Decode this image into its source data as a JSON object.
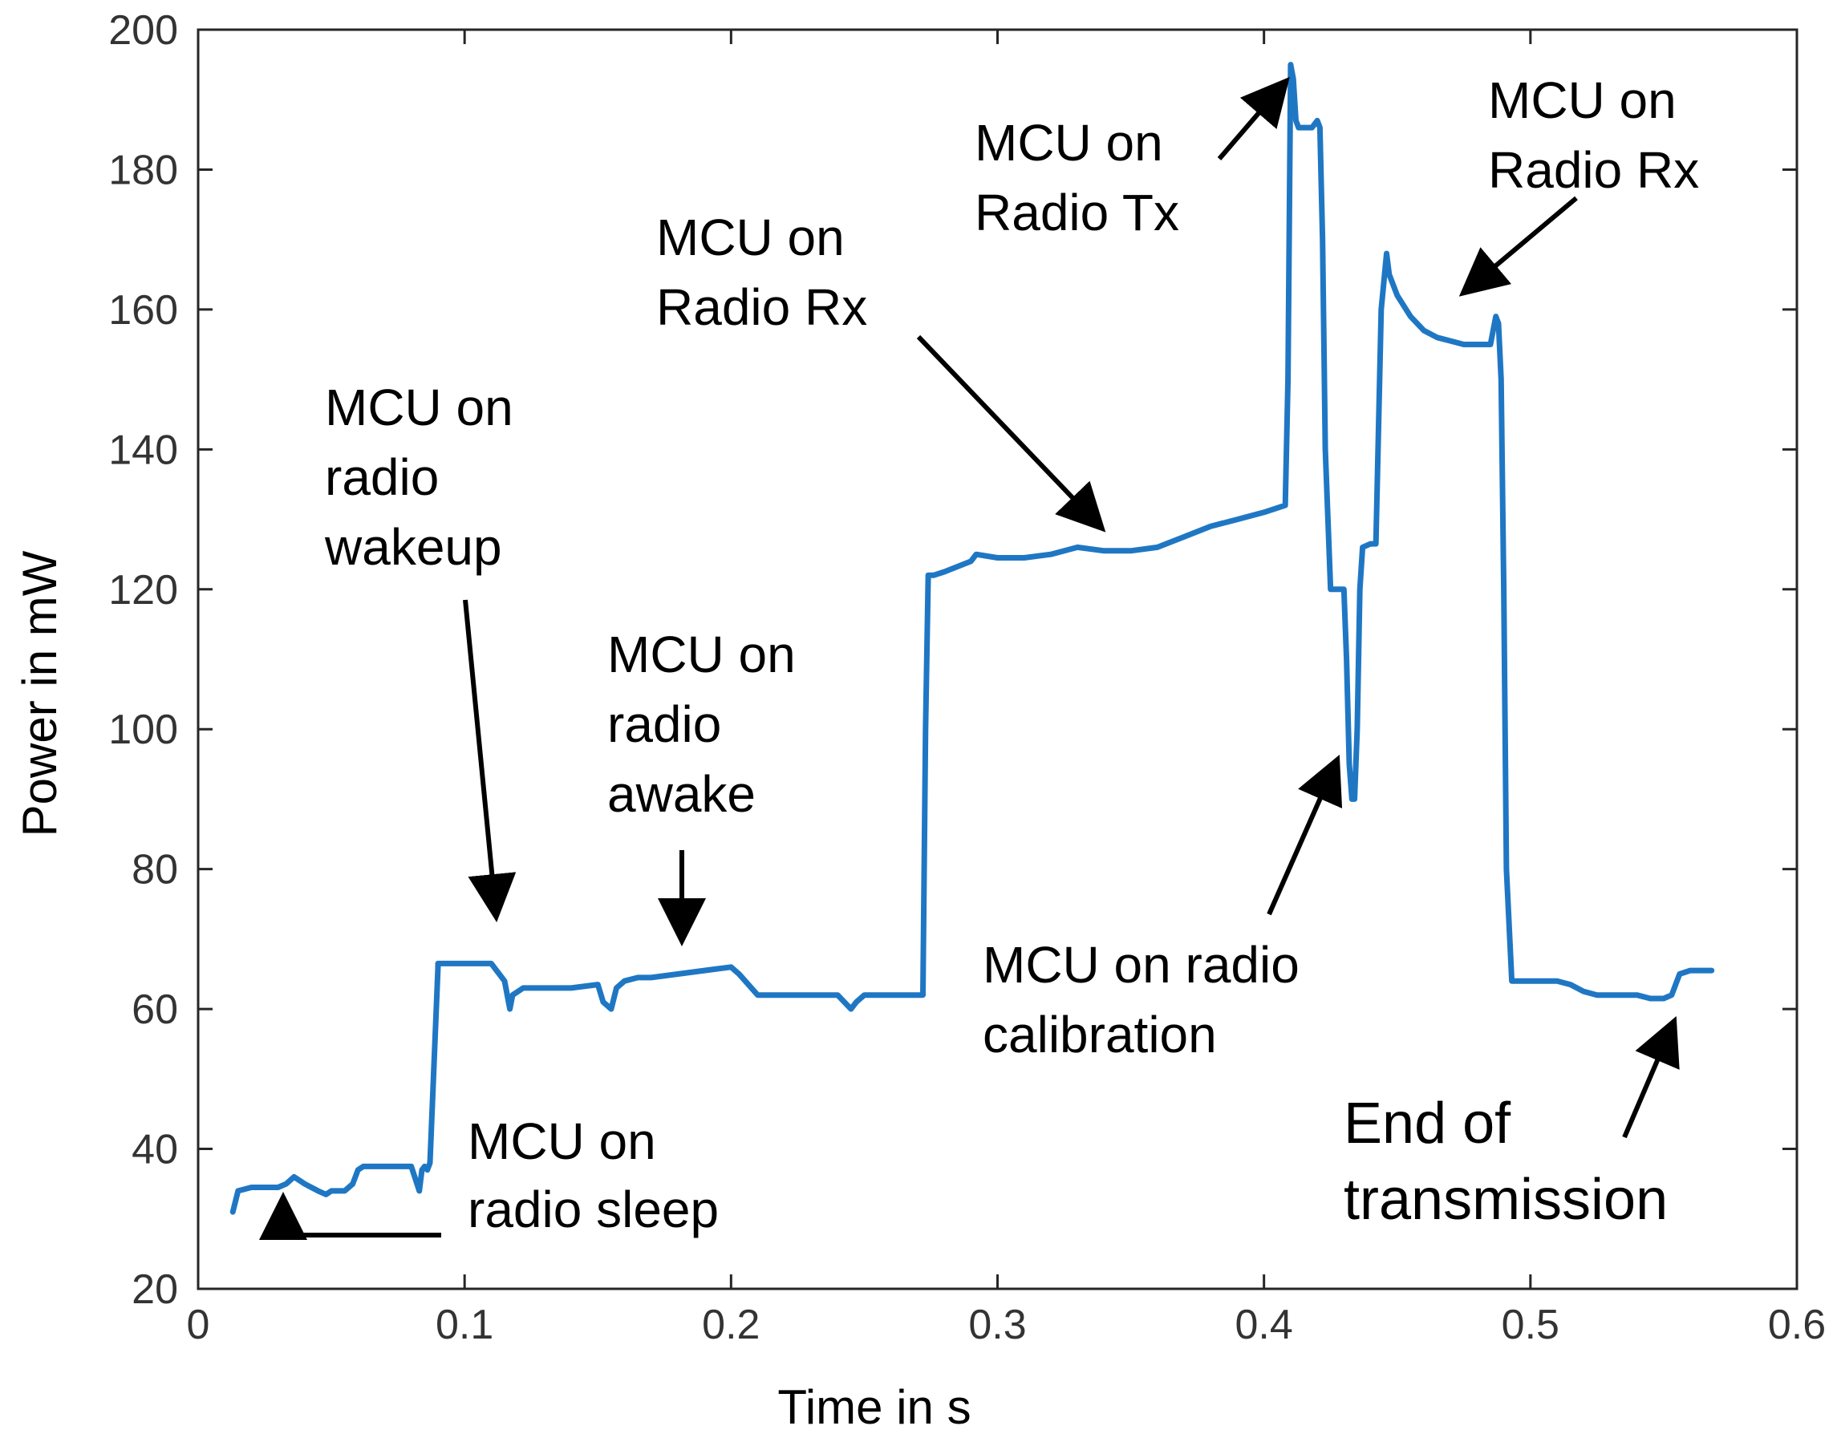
{
  "chart_data": {
    "type": "line",
    "title": "",
    "xlabel": "Time in s",
    "ylabel": "Power in mW",
    "xlim": [
      0,
      0.6
    ],
    "ylim": [
      20,
      200
    ],
    "grid": false,
    "xticks": [
      "0",
      "0.1",
      "0.2",
      "0.3",
      "0.4",
      "0.5",
      "0.6"
    ],
    "yticks": [
      "20",
      "40",
      "60",
      "80",
      "100",
      "120",
      "140",
      "160",
      "180",
      "200"
    ],
    "series": [
      {
        "name": "Power",
        "color": "#1f77c4",
        "x": [
          0.013,
          0.015,
          0.02,
          0.03,
          0.033,
          0.036,
          0.04,
          0.045,
          0.048,
          0.05,
          0.055,
          0.058,
          0.06,
          0.062,
          0.07,
          0.08,
          0.083,
          0.084,
          0.085,
          0.086,
          0.087,
          0.09,
          0.09,
          0.1,
          0.11,
          0.115,
          0.117,
          0.118,
          0.12,
          0.122,
          0.13,
          0.14,
          0.15,
          0.152,
          0.155,
          0.157,
          0.16,
          0.165,
          0.17,
          0.18,
          0.19,
          0.2,
          0.203,
          0.21,
          0.22,
          0.23,
          0.24,
          0.245,
          0.247,
          0.25,
          0.26,
          0.27,
          0.272,
          0.273,
          0.274,
          0.276,
          0.28,
          0.29,
          0.292,
          0.3,
          0.31,
          0.32,
          0.33,
          0.34,
          0.35,
          0.36,
          0.37,
          0.38,
          0.39,
          0.4,
          0.408,
          0.409,
          0.41,
          0.411,
          0.412,
          0.413,
          0.415,
          0.418,
          0.42,
          0.421,
          0.422,
          0.423,
          0.425,
          0.428,
          0.43,
          0.431,
          0.432,
          0.433,
          0.434,
          0.435,
          0.436,
          0.437,
          0.44,
          0.441,
          0.442,
          0.444,
          0.446,
          0.447,
          0.45,
          0.455,
          0.46,
          0.465,
          0.47,
          0.475,
          0.48,
          0.485,
          0.487,
          0.488,
          0.489,
          0.49,
          0.491,
          0.493,
          0.5,
          0.505,
          0.51,
          0.515,
          0.52,
          0.525,
          0.53,
          0.54,
          0.545,
          0.55,
          0.553,
          0.556,
          0.56,
          0.565,
          0.568
        ],
        "values": [
          31,
          34,
          34.5,
          34.5,
          35,
          36,
          35,
          34,
          33.5,
          34,
          34,
          35,
          37,
          37.5,
          37.5,
          37.5,
          34,
          37,
          37.5,
          37,
          38,
          66,
          66.5,
          66.5,
          66.5,
          64,
          60,
          62,
          62.5,
          63,
          63,
          63,
          63.5,
          61,
          60,
          63,
          64,
          64.5,
          64.5,
          65,
          65.5,
          66,
          65,
          62,
          62,
          62,
          62,
          60,
          61,
          62,
          62,
          62,
          62,
          100,
          122,
          122,
          122.5,
          124,
          125,
          124.5,
          124.5,
          125,
          126,
          125.5,
          125.5,
          126,
          127.5,
          129,
          130,
          131,
          132,
          150,
          195,
          193,
          187,
          186,
          186,
          186,
          187,
          186,
          170,
          140,
          120,
          120,
          120,
          110,
          95,
          90,
          90,
          100,
          120,
          126,
          126.5,
          126.5,
          126.5,
          160,
          168,
          165,
          162,
          159,
          157,
          156,
          155.5,
          155,
          155,
          155,
          159,
          158,
          150,
          120,
          80,
          64,
          64,
          64,
          64,
          63.5,
          62.5,
          62,
          62,
          62,
          61.5,
          61.5,
          62,
          65,
          65.5,
          65.5,
          65.5
        ]
      }
    ],
    "annotations": [
      {
        "lines": [
          "MCU on",
          "radio sleep"
        ]
      },
      {
        "lines": [
          "MCU on",
          "radio",
          "wakeup"
        ]
      },
      {
        "lines": [
          "MCU on",
          "radio",
          "awake"
        ]
      },
      {
        "lines": [
          "MCU on",
          "Radio Rx"
        ]
      },
      {
        "lines": [
          "MCU on",
          "Radio Tx"
        ]
      },
      {
        "lines": [
          "MCU on radio",
          "calibration"
        ]
      },
      {
        "lines": [
          "MCU on",
          "Radio Rx"
        ]
      },
      {
        "lines": [
          "End of",
          "transmission"
        ]
      }
    ]
  }
}
